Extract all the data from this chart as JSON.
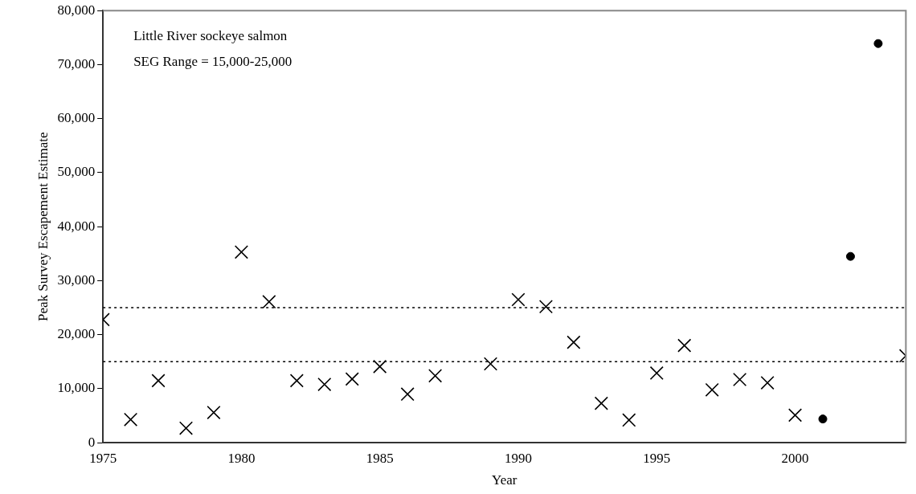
{
  "chart_data": {
    "type": "scatter",
    "xlabel": "Year",
    "ylabel": "Peak Survey Escapement Estimate",
    "annotations": [
      "Little River sockeye salmon",
      "SEG Range = 15,000-25,000"
    ],
    "series": [
      {
        "marker": "cross",
        "color": "#000000",
        "x": [
          1975,
          1976,
          1977,
          1978,
          1979,
          1980,
          1981,
          1982,
          1983,
          1984,
          1985,
          1986,
          1987,
          1989,
          1990,
          1991,
          1992,
          1993,
          1994,
          1995,
          1996,
          1997,
          1998,
          1999,
          2000,
          2004
        ],
        "values": [
          22800,
          4300,
          11500,
          2700,
          5600,
          35300,
          26100,
          11500,
          10800,
          11800,
          14100,
          9000,
          12400,
          14600,
          26500,
          25200,
          18600,
          7300,
          4200,
          12900,
          18000,
          9800,
          11700,
          11100,
          5100,
          16100
        ]
      },
      {
        "marker": "circle",
        "color": "#000000",
        "x": [
          2001,
          2002,
          2003
        ],
        "values": [
          4400,
          34500,
          73900
        ]
      }
    ],
    "xlim": [
      1975,
      2004
    ],
    "xticks": [
      1975,
      1980,
      1985,
      1990,
      1995,
      2000
    ],
    "ylim": [
      0,
      80000
    ],
    "yticks": [
      {
        "value": 0,
        "label": "0"
      },
      {
        "value": 10000,
        "label": "10,000"
      },
      {
        "value": 20000,
        "label": "20,000"
      },
      {
        "value": 30000,
        "label": "30,000"
      },
      {
        "value": 40000,
        "label": "40,000"
      },
      {
        "value": 50000,
        "label": "50,000"
      },
      {
        "value": 60000,
        "label": "60,000"
      },
      {
        "value": 70000,
        "label": "70,000"
      },
      {
        "value": 80000,
        "label": "80,000"
      }
    ],
    "ref_lines": [
      {
        "axis": "y",
        "value": 15000,
        "line_style": "dotted",
        "color": "#000000"
      },
      {
        "axis": "y",
        "value": 25000,
        "line_style": "dotted",
        "color": "#000000"
      }
    ],
    "grid": false,
    "legend": false
  }
}
